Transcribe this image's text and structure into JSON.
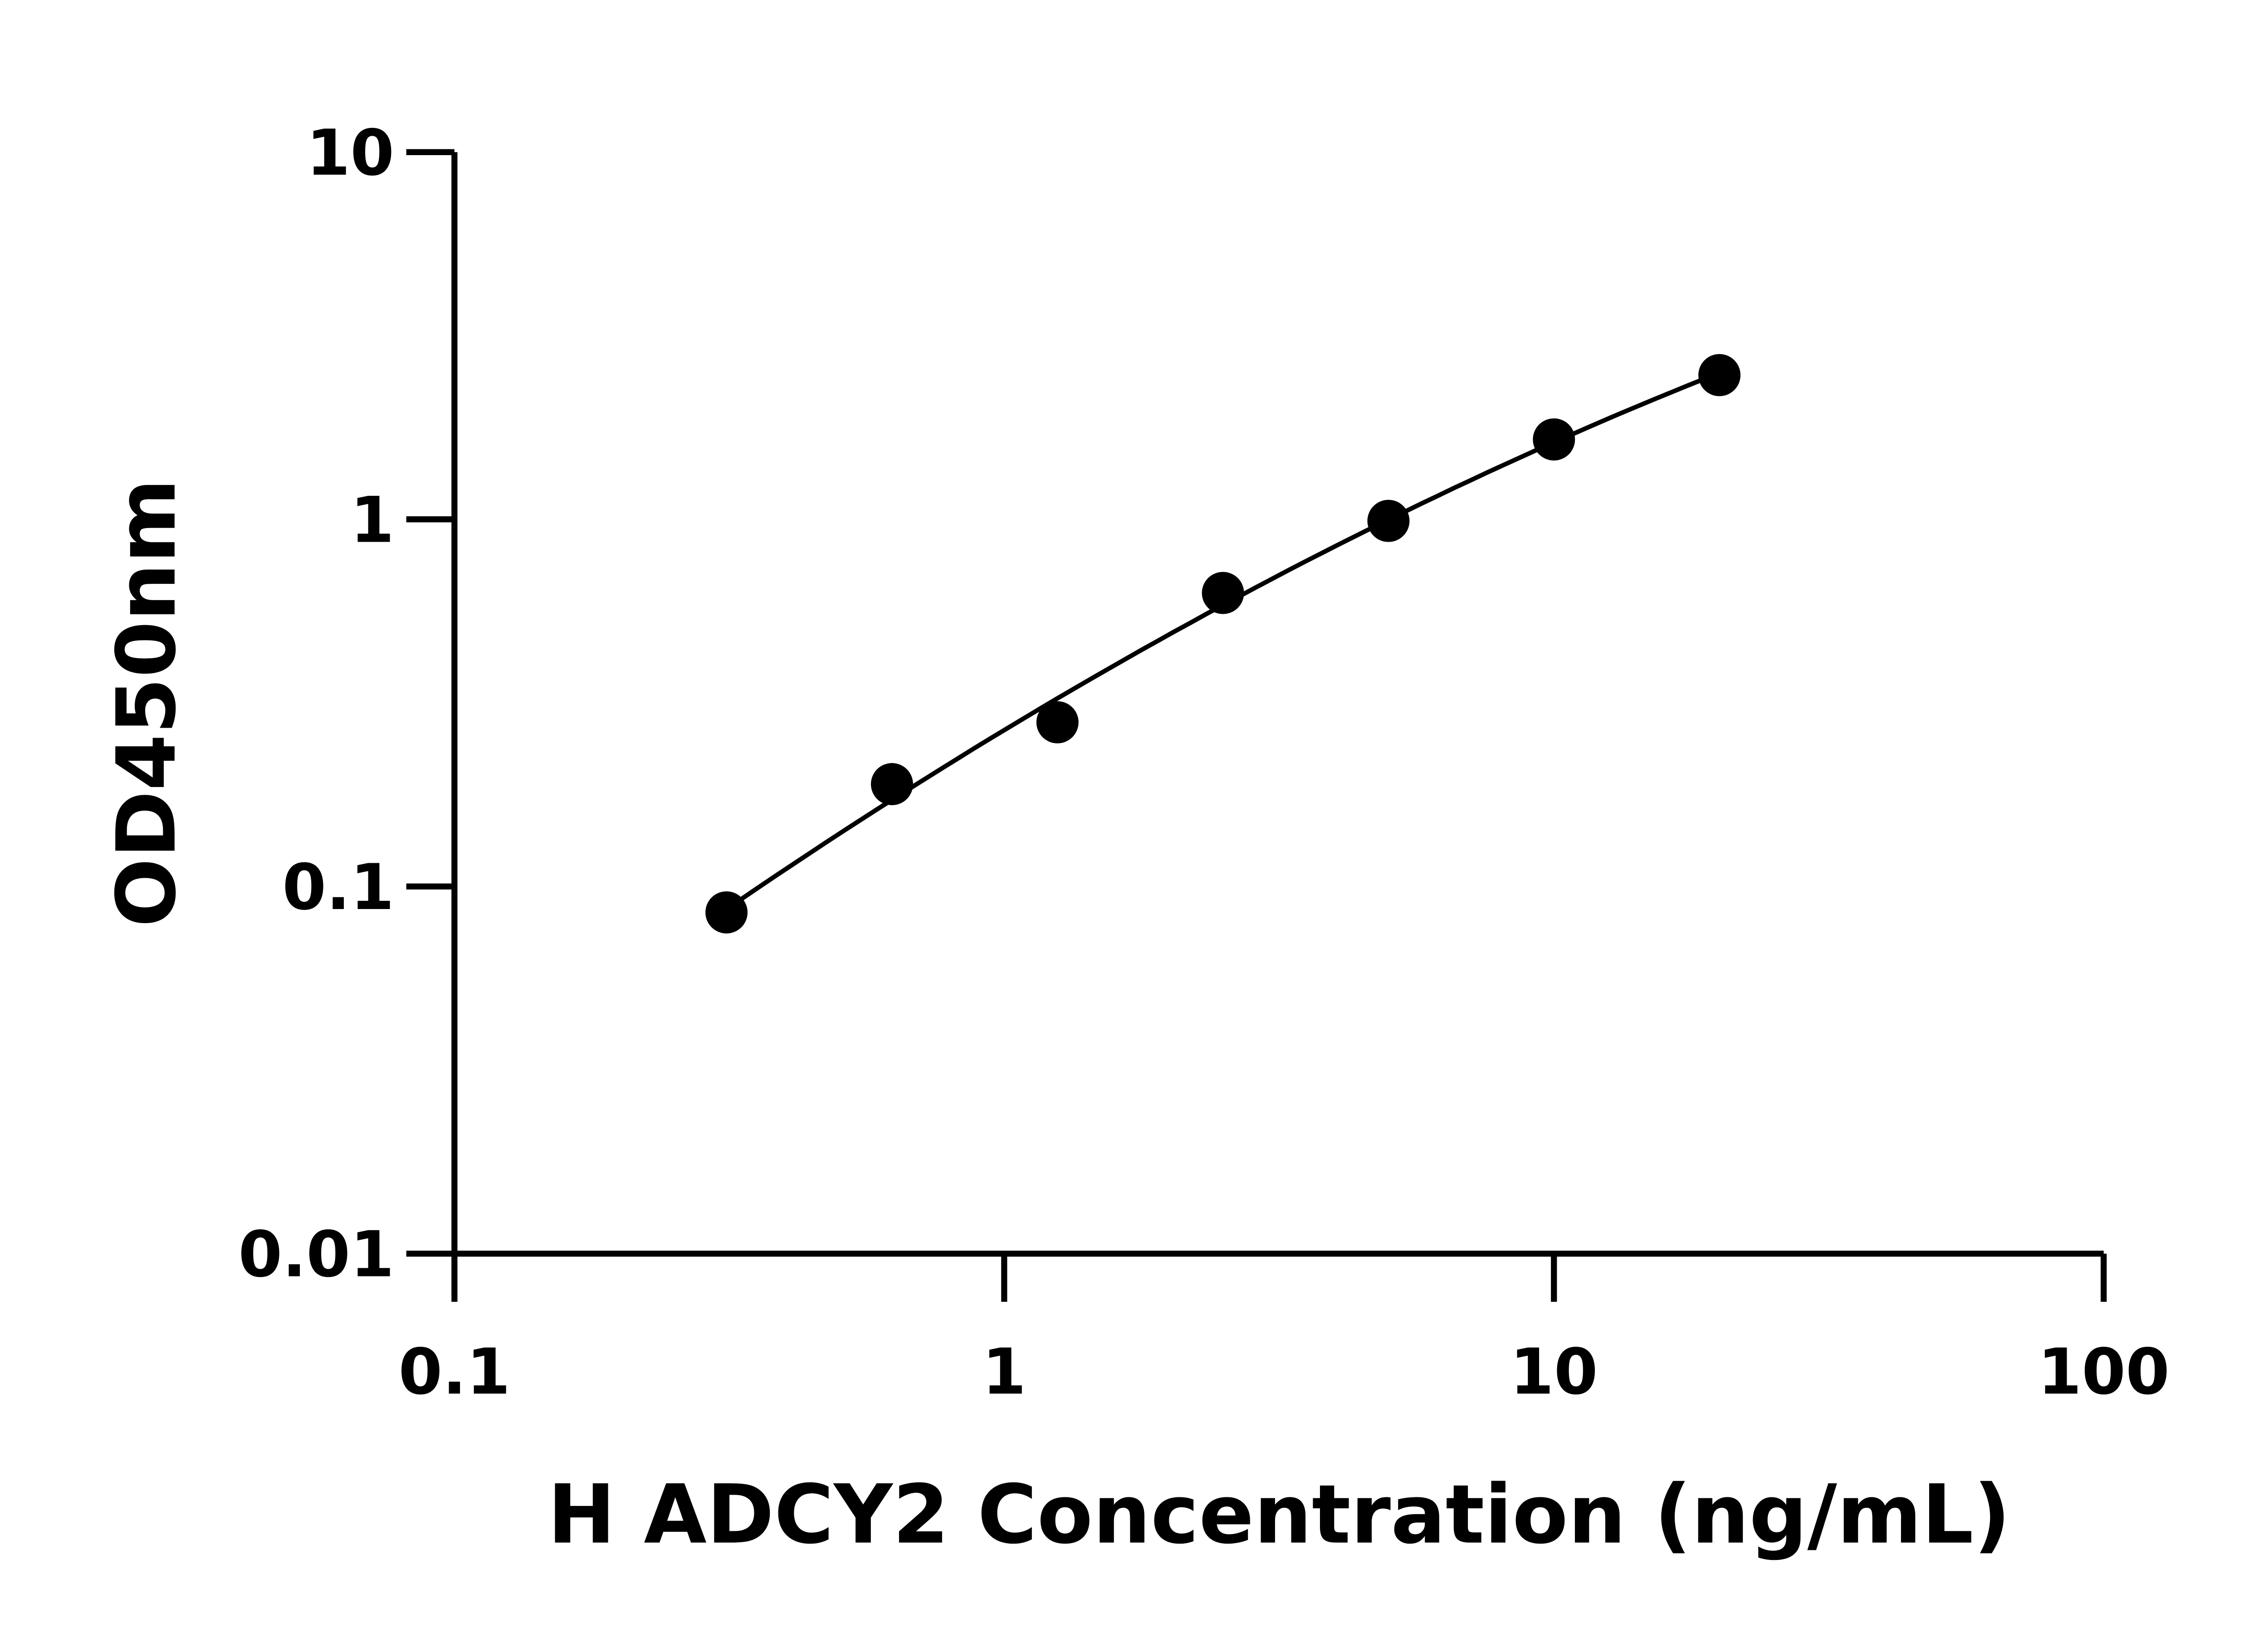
{
  "chart_data": {
    "type": "scatter",
    "title": "",
    "xlabel": "H ADCY2 Concentration (ng/mL)",
    "ylabel": "OD450nm",
    "xscale": "log",
    "yscale": "log",
    "xlim": [
      0.1,
      100
    ],
    "ylim": [
      0.01,
      10
    ],
    "xticks": [
      "0.1",
      "1",
      "10",
      "100"
    ],
    "yticks": [
      "0.01",
      "0.1",
      "1",
      "10"
    ],
    "grid": false,
    "series": [
      {
        "x": [
          0.3125,
          0.625,
          1.25,
          2.5,
          5,
          10,
          20
        ],
        "y": [
          0.085,
          0.19,
          0.28,
          0.63,
          0.99,
          1.65,
          2.47
        ],
        "marker": "circle",
        "fit_line": true
      }
    ],
    "colors": {
      "points": "#000000",
      "line": "#000000"
    }
  }
}
